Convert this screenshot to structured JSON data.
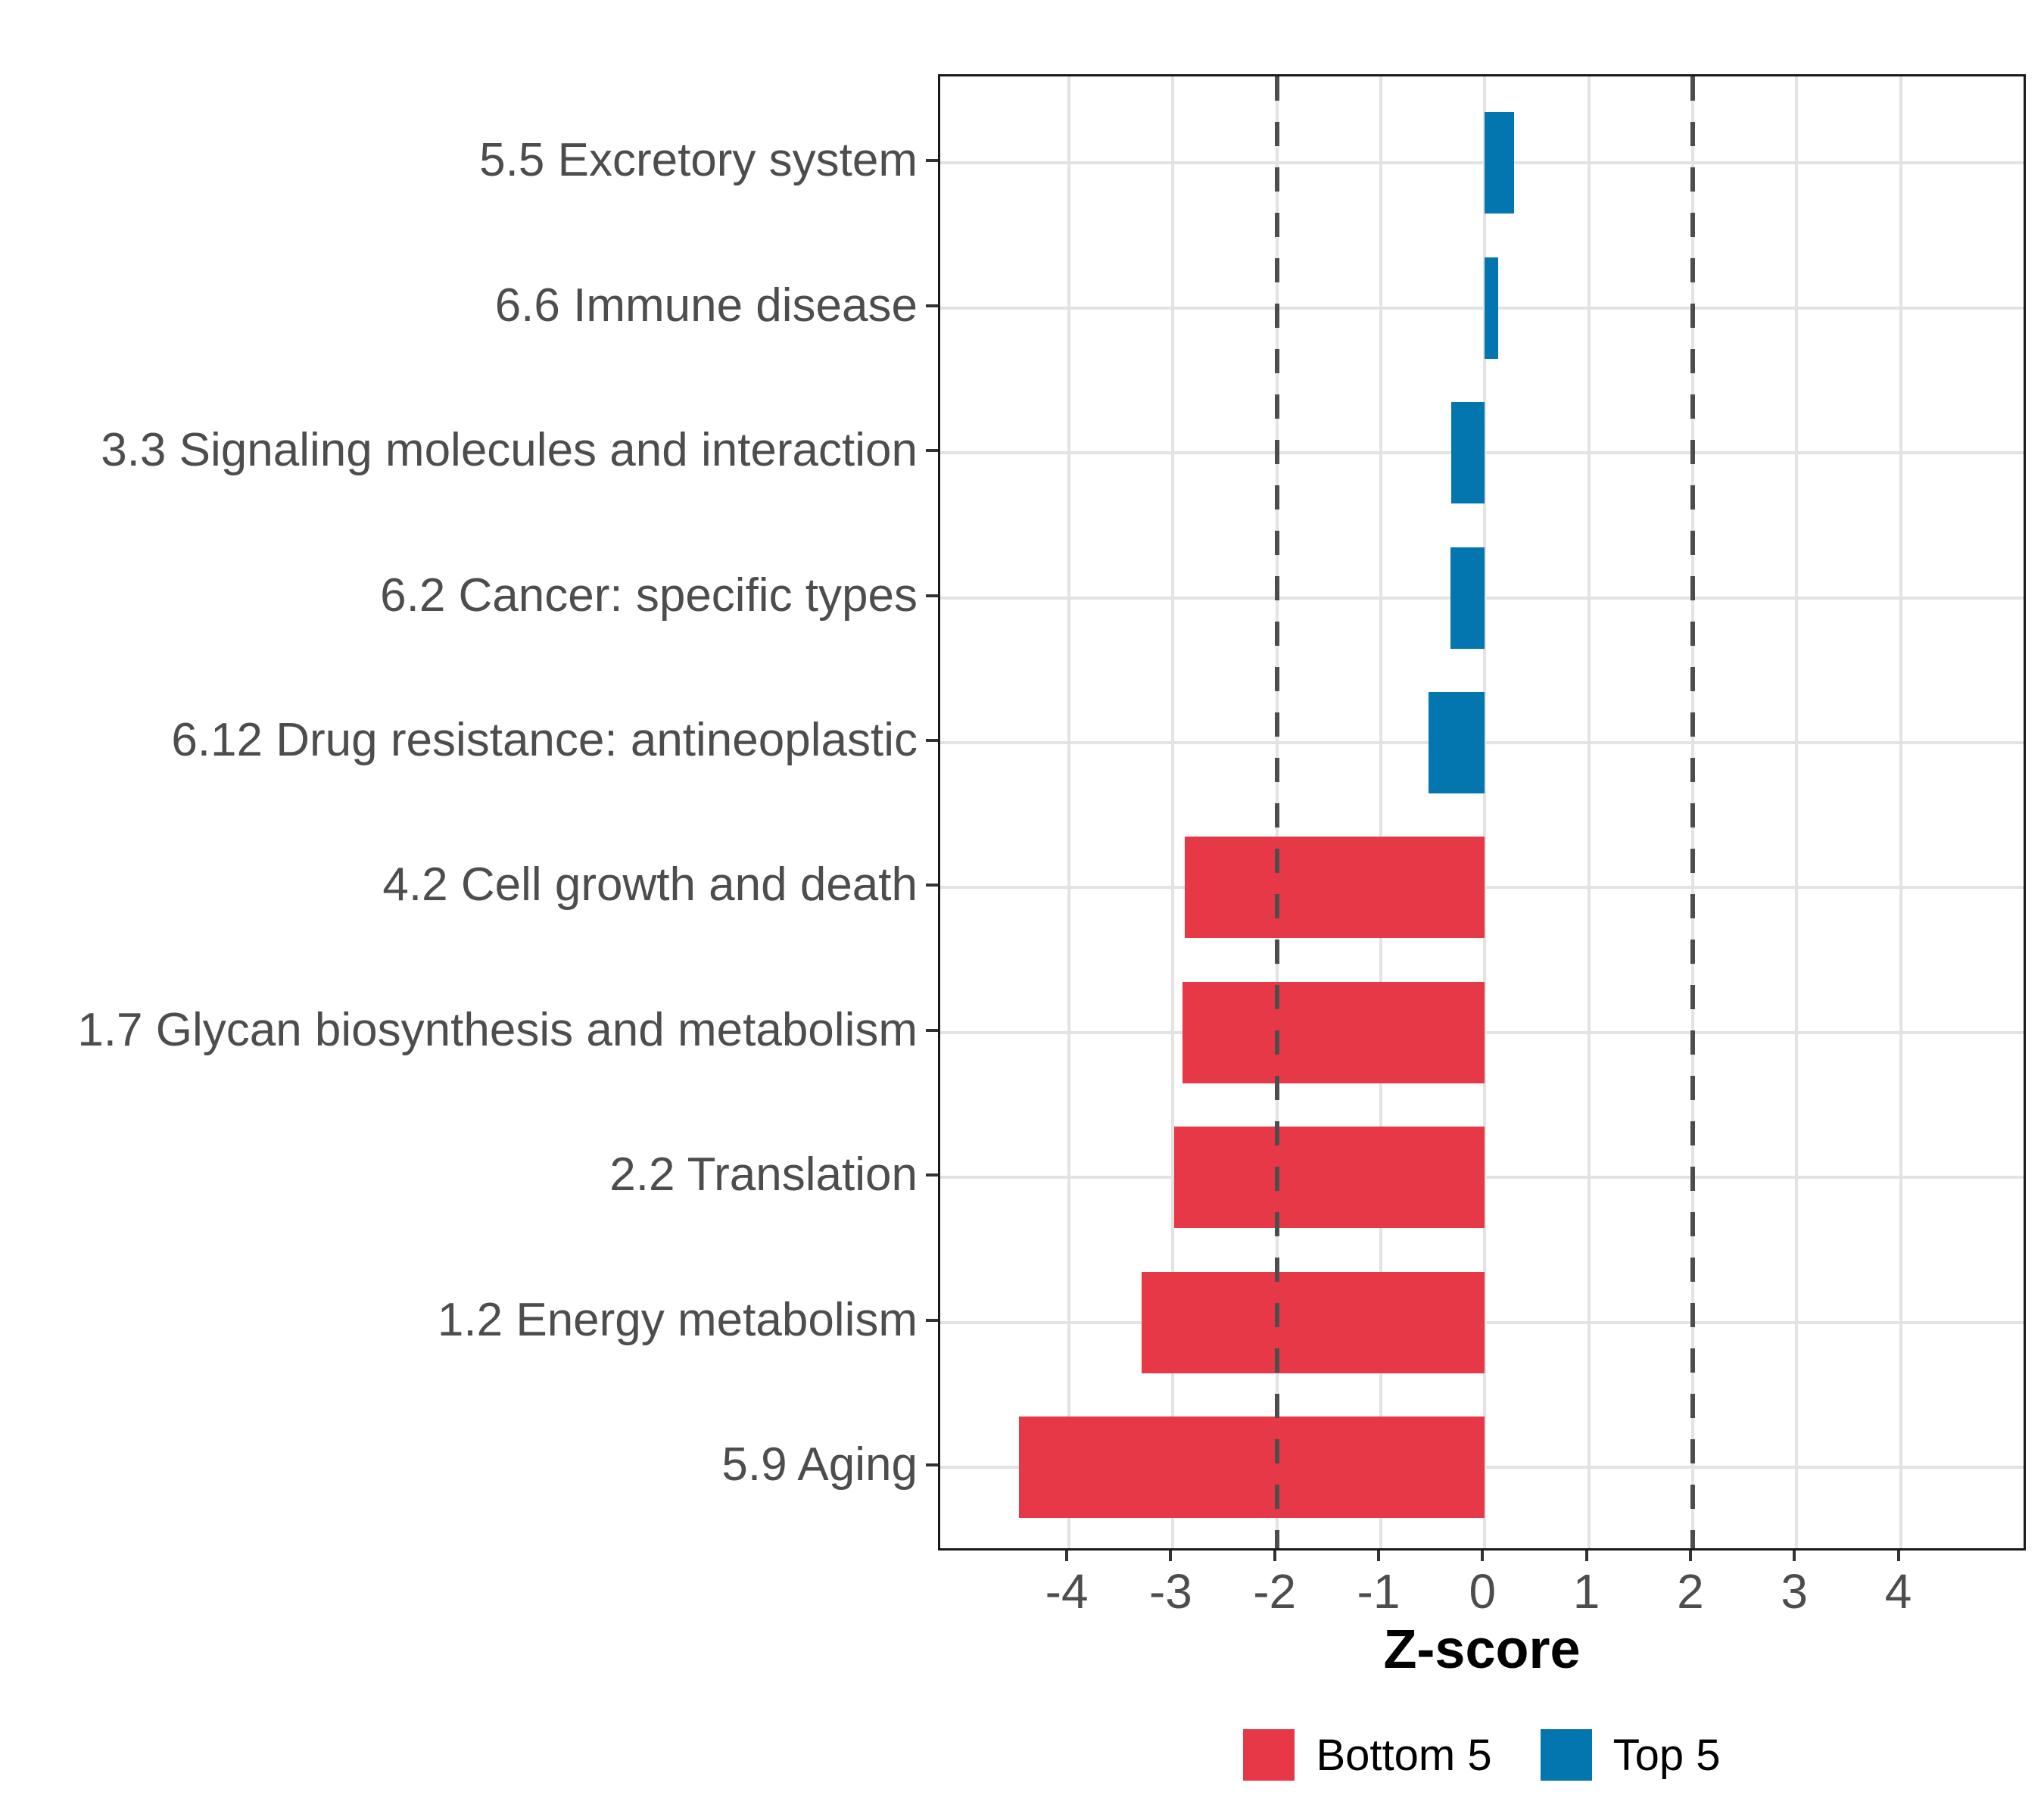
{
  "figure": {
    "background": "#ffffff"
  },
  "chart_data": {
    "type": "bar",
    "orientation": "horizontal",
    "title": "",
    "xlabel": "Z-score",
    "ylabel": "",
    "x_ticks": [
      "-4",
      "-3",
      "-2",
      "-1",
      "0",
      "1",
      "2",
      "3",
      "4"
    ],
    "x_tick_values": [
      -4,
      -3,
      -2,
      -1,
      0,
      1,
      2,
      3,
      4
    ],
    "xlim": [
      -5.23,
      5.23
    ],
    "grid": true,
    "legend_position": "bottom",
    "reference_lines": {
      "values": [
        -2,
        2
      ],
      "style": "dashed",
      "color": "#4d4d4d"
    },
    "groups": [
      {
        "name": "Bottom 5",
        "color": "#E73847"
      },
      {
        "name": "Top 5",
        "color": "#0376B0"
      }
    ],
    "categories": [
      "5.5 Excretory system",
      "6.6 Immune disease",
      "3.3 Signaling molecules and interaction",
      "6.2 Cancer: specific types",
      "6.12 Drug resistance: antineoplastic",
      "4.2 Cell growth and death",
      "1.7 Glycan biosynthesis and metabolism",
      "2.2 Translation",
      "1.2 Energy metabolism",
      "5.9 Aging"
    ],
    "bars": [
      {
        "category": "5.5 Excretory system",
        "group": "Top 5",
        "value": 0.28
      },
      {
        "category": "6.6 Immune disease",
        "group": "Top 5",
        "value": 0.13
      },
      {
        "category": "3.3 Signaling molecules and interaction",
        "group": "Top 5",
        "value": -0.32
      },
      {
        "category": "6.2 Cancer: specific types",
        "group": "Top 5",
        "value": -0.33
      },
      {
        "category": "6.12 Drug resistance: antineoplastic",
        "group": "Top 5",
        "value": -0.54
      },
      {
        "category": "4.2 Cell growth and death",
        "group": "Bottom 5",
        "value": -2.89
      },
      {
        "category": "1.7 Glycan biosynthesis and metabolism",
        "group": "Bottom 5",
        "value": -2.91
      },
      {
        "category": "2.2 Translation",
        "group": "Bottom 5",
        "value": -2.99
      },
      {
        "category": "1.2 Energy metabolism",
        "group": "Bottom 5",
        "value": -3.3
      },
      {
        "category": "5.9 Aging",
        "group": "Bottom 5",
        "value": -4.48
      }
    ]
  }
}
